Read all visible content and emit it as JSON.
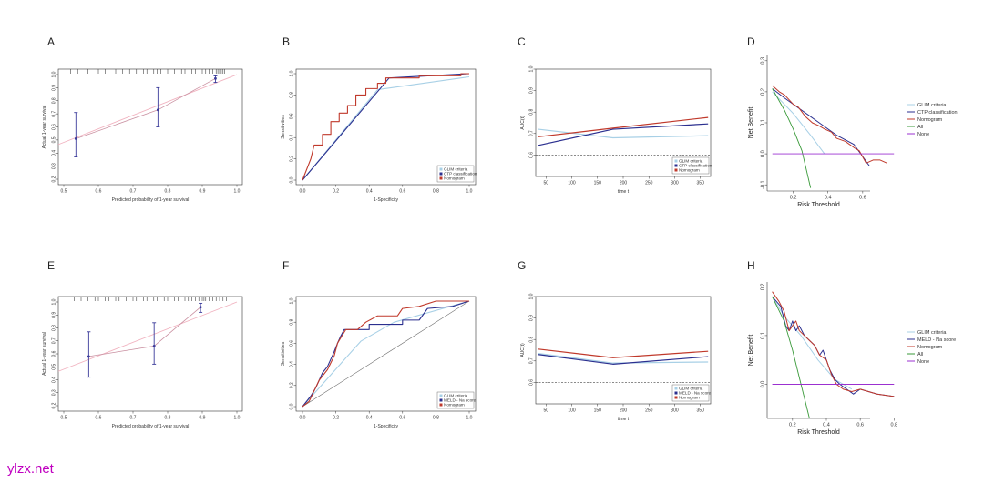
{
  "watermark": "ylzx.net",
  "colors": {
    "glim": "#a8d0e6",
    "ctp": "#2b2f8f",
    "meld": "#2b2f8f",
    "nomogram": "#c0392b",
    "all": "#3a9a3a",
    "none": "#9b30d0",
    "ideal": "#f1b3c0",
    "axis": "#333333",
    "reference": "#666666"
  },
  "chart_data": [
    {
      "panel": "A",
      "type": "calibration",
      "xlabel": "Predicted probability of 1-year survival",
      "ylabel": "Actual 1-year survival",
      "xlim": [
        0.5,
        1.0
      ],
      "ylim": [
        0.2,
        1.0
      ],
      "xticks": [
        "0.5",
        "0.6",
        "0.7",
        "0.8",
        "0.9",
        "1.0"
      ],
      "yticks": [
        "0.2",
        "0.3",
        "0.4",
        "0.5",
        "0.6",
        "0.7",
        "0.8",
        "0.9",
        "1.0"
      ],
      "points": [
        {
          "x": 0.535,
          "y": 0.51,
          "lo": 0.37,
          "hi": 0.71
        },
        {
          "x": 0.772,
          "y": 0.73,
          "lo": 0.6,
          "hi": 0.9
        },
        {
          "x": 0.938,
          "y": 0.97,
          "lo": 0.94,
          "hi": 0.99
        }
      ],
      "rug": [
        0.52,
        0.54,
        0.57,
        0.6,
        0.62,
        0.65,
        0.67,
        0.69,
        0.71,
        0.73,
        0.74,
        0.76,
        0.77,
        0.78,
        0.8,
        0.82,
        0.84,
        0.85,
        0.87,
        0.88,
        0.9,
        0.91,
        0.92,
        0.93,
        0.94,
        0.945,
        0.95,
        0.955,
        0.96,
        0.965
      ]
    },
    {
      "panel": "B",
      "type": "roc",
      "xlabel": "1-Specificity",
      "ylabel": "Sensitivities",
      "xlim": [
        0,
        1
      ],
      "ylim": [
        0,
        1
      ],
      "xticks": [
        "0.0",
        "0.2",
        "0.4",
        "0.6",
        "0.8",
        "1.0"
      ],
      "yticks": [
        "0.0",
        "0.2",
        "0.4",
        "0.6",
        "0.8",
        "1.0"
      ],
      "legend": [
        "GLIM criteria",
        "CTP classification",
        "Nomogram"
      ],
      "series": [
        {
          "name": "GLIM criteria",
          "color_key": "glim",
          "points": [
            [
              0,
              0
            ],
            [
              0.45,
              0.85
            ],
            [
              1,
              0.97
            ]
          ]
        },
        {
          "name": "CTP classification",
          "color_key": "ctp",
          "points": [
            [
              0,
              0
            ],
            [
              0.52,
              0.96
            ],
            [
              1,
              1
            ]
          ]
        },
        {
          "name": "Nomogram",
          "color_key": "nomogram",
          "points": [
            [
              0,
              0
            ],
            [
              0.05,
              0.2
            ],
            [
              0.07,
              0.33
            ],
            [
              0.12,
              0.33
            ],
            [
              0.12,
              0.43
            ],
            [
              0.17,
              0.43
            ],
            [
              0.17,
              0.55
            ],
            [
              0.22,
              0.55
            ],
            [
              0.22,
              0.63
            ],
            [
              0.27,
              0.63
            ],
            [
              0.27,
              0.7
            ],
            [
              0.32,
              0.7
            ],
            [
              0.32,
              0.8
            ],
            [
              0.38,
              0.8
            ],
            [
              0.38,
              0.86
            ],
            [
              0.45,
              0.86
            ],
            [
              0.45,
              0.91
            ],
            [
              0.5,
              0.91
            ],
            [
              0.5,
              0.96
            ],
            [
              0.7,
              0.96
            ],
            [
              0.7,
              0.98
            ],
            [
              0.95,
              0.98
            ],
            [
              0.95,
              1
            ],
            [
              1,
              1
            ]
          ]
        }
      ]
    },
    {
      "panel": "C",
      "type": "line",
      "xlabel": "time t",
      "ylabel": "AUC(t)",
      "xlim": [
        30,
        370
      ],
      "ylim": [
        0.5,
        1.0
      ],
      "xticks": [
        "50",
        "100",
        "150",
        "200",
        "250",
        "300",
        "350"
      ],
      "yticks": [
        "0.6",
        "0.7",
        "0.8",
        "0.9",
        "1.0"
      ],
      "reference_y": 0.6,
      "legend": [
        "GLIM criteria",
        "CTP classification",
        "Nomogram"
      ],
      "series": [
        {
          "name": "GLIM criteria",
          "color_key": "glim",
          "x": [
            35,
            180,
            365
          ],
          "y": [
            0.72,
            0.68,
            0.69
          ]
        },
        {
          "name": "CTP classification",
          "color_key": "ctp",
          "x": [
            35,
            180,
            365
          ],
          "y": [
            0.645,
            0.72,
            0.745
          ]
        },
        {
          "name": "Nomogram",
          "color_key": "nomogram",
          "x": [
            35,
            180,
            365
          ],
          "y": [
            0.685,
            0.725,
            0.775
          ]
        }
      ]
    },
    {
      "panel": "D",
      "type": "decision_curve",
      "xlabel": "Risk Threshold",
      "ylabel": "Net Benefit",
      "xlim": [
        0.05,
        0.8
      ],
      "ylim": [
        -0.12,
        0.32
      ],
      "xticks": [
        "0.2",
        "0.4",
        "0.6"
      ],
      "yticks": [
        "-0.1",
        "0.0",
        "0.1",
        "0.2",
        "0.3"
      ],
      "legend": [
        "GLIM criteria",
        "CTP classification",
        "Nomogram",
        "All",
        "None"
      ],
      "series": [
        {
          "name": "GLIM criteria",
          "color_key": "glim",
          "x": [
            0.08,
            0.2,
            0.3,
            0.38
          ],
          "y": [
            0.2,
            0.13,
            0.06,
            0.0
          ]
        },
        {
          "name": "CTP classification",
          "color_key": "ctp",
          "x": [
            0.08,
            0.15,
            0.25,
            0.35,
            0.45,
            0.55,
            0.64
          ],
          "y": [
            0.21,
            0.18,
            0.14,
            0.1,
            0.06,
            0.03,
            -0.04
          ]
        },
        {
          "name": "Nomogram",
          "color_key": "nomogram",
          "x": [
            0.08,
            0.12,
            0.15,
            0.2,
            0.23,
            0.27,
            0.31,
            0.35,
            0.38,
            0.42,
            0.45,
            0.5,
            0.55,
            0.58,
            0.62,
            0.66,
            0.7,
            0.74
          ],
          "y": [
            0.22,
            0.2,
            0.19,
            0.16,
            0.15,
            0.12,
            0.1,
            0.09,
            0.08,
            0.07,
            0.05,
            0.04,
            0.02,
            0.01,
            -0.03,
            -0.02,
            -0.02,
            -0.03
          ]
        },
        {
          "name": "All",
          "color_key": "all",
          "x": [
            0.08,
            0.15,
            0.2,
            0.25,
            0.3
          ],
          "y": [
            0.21,
            0.14,
            0.08,
            0.01,
            -0.11
          ]
        },
        {
          "name": "None",
          "color_key": "none",
          "x": [
            0.08,
            0.78
          ],
          "y": [
            0,
            0
          ]
        }
      ]
    },
    {
      "panel": "E",
      "type": "calibration",
      "xlabel": "Predicted probability of 1-year survival",
      "ylabel": "Actual 1-year survival",
      "xlim": [
        0.5,
        1.0
      ],
      "ylim": [
        0.2,
        1.0
      ],
      "xticks": [
        "0.5",
        "0.6",
        "0.7",
        "0.8",
        "0.9",
        "1.0"
      ],
      "yticks": [
        "0.2",
        "0.3",
        "0.4",
        "0.5",
        "0.6",
        "0.7",
        "0.8",
        "0.9",
        "1.0"
      ],
      "points": [
        {
          "x": 0.572,
          "y": 0.58,
          "lo": 0.42,
          "hi": 0.77
        },
        {
          "x": 0.761,
          "y": 0.66,
          "lo": 0.52,
          "hi": 0.84
        },
        {
          "x": 0.895,
          "y": 0.96,
          "lo": 0.92,
          "hi": 0.99
        }
      ],
      "rug": [
        0.53,
        0.55,
        0.57,
        0.59,
        0.6,
        0.62,
        0.63,
        0.65,
        0.66,
        0.68,
        0.7,
        0.71,
        0.73,
        0.74,
        0.76,
        0.77,
        0.79,
        0.8,
        0.82,
        0.83,
        0.85,
        0.86,
        0.87,
        0.88,
        0.89,
        0.9,
        0.905,
        0.91,
        0.92,
        0.93,
        0.94,
        0.95,
        0.96,
        0.97
      ]
    },
    {
      "panel": "F",
      "type": "roc",
      "xlabel": "1-Specificity",
      "ylabel": "Sensitivities",
      "xlim": [
        0,
        1
      ],
      "ylim": [
        0,
        1
      ],
      "xticks": [
        "0.0",
        "0.2",
        "0.4",
        "0.6",
        "0.8",
        "1.0"
      ],
      "yticks": [
        "0.0",
        "0.2",
        "0.4",
        "0.6",
        "0.8",
        "1.0"
      ],
      "reference_line": true,
      "legend": [
        "GLIM criteria",
        "MELD - Na score",
        "Nomogram"
      ],
      "series": [
        {
          "name": "GLIM criteria",
          "color_key": "glim",
          "points": [
            [
              0,
              0
            ],
            [
              0.35,
              0.62
            ],
            [
              0.55,
              0.8
            ],
            [
              1,
              1
            ]
          ]
        },
        {
          "name": "MELD - Na score",
          "color_key": "meld",
          "points": [
            [
              0,
              0
            ],
            [
              0.05,
              0.1
            ],
            [
              0.08,
              0.18
            ],
            [
              0.1,
              0.25
            ],
            [
              0.12,
              0.32
            ],
            [
              0.15,
              0.38
            ],
            [
              0.17,
              0.45
            ],
            [
              0.19,
              0.52
            ],
            [
              0.21,
              0.6
            ],
            [
              0.23,
              0.67
            ],
            [
              0.25,
              0.73
            ],
            [
              0.4,
              0.73
            ],
            [
              0.4,
              0.78
            ],
            [
              0.6,
              0.78
            ],
            [
              0.6,
              0.82
            ],
            [
              0.7,
              0.82
            ],
            [
              0.75,
              0.93
            ],
            [
              0.9,
              0.95
            ],
            [
              1,
              1
            ]
          ]
        },
        {
          "name": "Nomogram",
          "color_key": "nomogram",
          "points": [
            [
              0,
              0
            ],
            [
              0.04,
              0.05
            ],
            [
              0.07,
              0.15
            ],
            [
              0.1,
              0.25
            ],
            [
              0.15,
              0.35
            ],
            [
              0.19,
              0.48
            ],
            [
              0.21,
              0.6
            ],
            [
              0.24,
              0.68
            ],
            [
              0.26,
              0.73
            ],
            [
              0.33,
              0.73
            ],
            [
              0.38,
              0.8
            ],
            [
              0.45,
              0.86
            ],
            [
              0.57,
              0.86
            ],
            [
              0.6,
              0.93
            ],
            [
              0.7,
              0.95
            ],
            [
              0.8,
              1
            ],
            [
              1,
              1
            ]
          ]
        }
      ]
    },
    {
      "panel": "G",
      "type": "line",
      "xlabel": "time t",
      "ylabel": "AUC(t)",
      "xlim": [
        30,
        370
      ],
      "ylim": [
        0.5,
        1.0
      ],
      "xticks": [
        "50",
        "100",
        "150",
        "200",
        "250",
        "300",
        "350"
      ],
      "yticks": [
        "0.6",
        "0.7",
        "0.8",
        "0.9",
        "1.0"
      ],
      "reference_y": 0.6,
      "legend": [
        "GLIM criteria",
        "MELD - Na score",
        "Nomogram"
      ],
      "series": [
        {
          "name": "GLIM criteria",
          "color_key": "glim",
          "x": [
            35,
            180,
            365
          ],
          "y": [
            0.735,
            0.69,
            0.695
          ]
        },
        {
          "name": "MELD - Na score",
          "color_key": "meld",
          "x": [
            35,
            180,
            365
          ],
          "y": [
            0.73,
            0.685,
            0.72
          ]
        },
        {
          "name": "Nomogram",
          "color_key": "nomogram",
          "x": [
            35,
            180,
            365
          ],
          "y": [
            0.755,
            0.715,
            0.745
          ]
        }
      ]
    },
    {
      "panel": "H",
      "type": "decision_curve",
      "xlabel": "Risk Threshold",
      "ylabel": "Net Benefit",
      "xlim": [
        0.05,
        0.82
      ],
      "ylim": [
        -0.07,
        0.21
      ],
      "xticks": [
        "0.2",
        "0.4",
        "0.6",
        "0.8"
      ],
      "yticks": [
        "0.0",
        "0.1",
        "0.2"
      ],
      "legend": [
        "GLIM criteria",
        "MELD - Na score",
        "Nomogram",
        "All",
        "None"
      ],
      "series": [
        {
          "name": "GLIM criteria",
          "color_key": "glim",
          "x": [
            0.08,
            0.15,
            0.25,
            0.35,
            0.45,
            0.55
          ],
          "y": [
            0.18,
            0.14,
            0.1,
            0.05,
            0.01,
            -0.01
          ]
        },
        {
          "name": "MELD - Na score",
          "color_key": "meld",
          "x": [
            0.08,
            0.13,
            0.16,
            0.18,
            0.2,
            0.22,
            0.24,
            0.27,
            0.3,
            0.33,
            0.36,
            0.38,
            0.42,
            0.45,
            0.48,
            0.52,
            0.56,
            0.6,
            0.7,
            0.8
          ],
          "y": [
            0.18,
            0.16,
            0.12,
            0.11,
            0.13,
            0.11,
            0.12,
            0.1,
            0.09,
            0.08,
            0.06,
            0.07,
            0.03,
            0.01,
            0.0,
            -0.01,
            -0.02,
            -0.01,
            -0.02,
            -0.025
          ]
        },
        {
          "name": "Nomogram",
          "color_key": "nomogram",
          "x": [
            0.08,
            0.12,
            0.15,
            0.18,
            0.2,
            0.22,
            0.24,
            0.27,
            0.3,
            0.33,
            0.36,
            0.4,
            0.43,
            0.46,
            0.5,
            0.55,
            0.6,
            0.7,
            0.8
          ],
          "y": [
            0.19,
            0.17,
            0.15,
            0.11,
            0.12,
            0.13,
            0.11,
            0.1,
            0.09,
            0.08,
            0.06,
            0.05,
            0.02,
            0.0,
            -0.01,
            -0.015,
            -0.01,
            -0.02,
            -0.025
          ]
        },
        {
          "name": "All",
          "color_key": "all",
          "x": [
            0.08,
            0.15,
            0.2,
            0.25,
            0.3
          ],
          "y": [
            0.18,
            0.13,
            0.07,
            0.0,
            -0.07
          ]
        },
        {
          "name": "None",
          "color_key": "none",
          "x": [
            0.08,
            0.8
          ],
          "y": [
            0,
            0
          ]
        }
      ]
    }
  ]
}
